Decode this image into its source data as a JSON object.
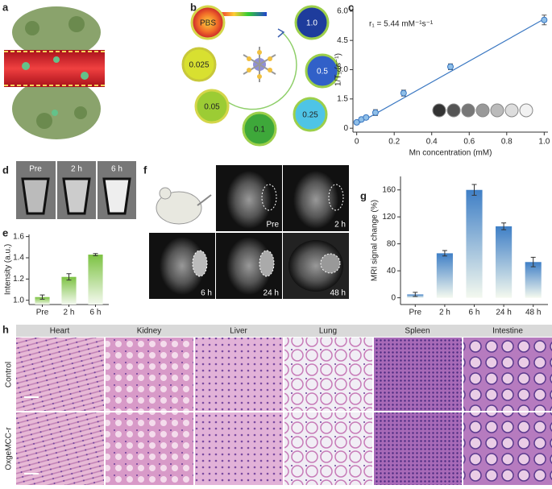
{
  "panel_labels": [
    "a",
    "b",
    "c",
    "d",
    "e",
    "f",
    "g",
    "h"
  ],
  "panel_b": {
    "labels": [
      "PBS",
      "1.0",
      "0.5",
      "0.25",
      "0.1",
      "0.05",
      "0.025"
    ]
  },
  "panel_d": {
    "labels": [
      "Pre",
      "2 h",
      "6 h"
    ]
  },
  "panel_f": {
    "labels": [
      "Pre",
      "2 h",
      "6 h",
      "24 h",
      "48 h"
    ]
  },
  "panel_h": {
    "columns": [
      "Heart",
      "Kidney",
      "Liver",
      "Lung",
      "Spleen",
      "Intestine"
    ],
    "rows": [
      "Control",
      "OxgeMCC-r"
    ]
  },
  "chart_data": [
    {
      "type": "scatter",
      "annotation": "r₁ = 5.44 mM⁻¹s⁻¹",
      "xlabel": "Mn concentration (mM)",
      "ylabel": "1/T₁ (s⁻¹)",
      "x": [
        0,
        0.025,
        0.05,
        0.1,
        0.25,
        0.5,
        1.0
      ],
      "y": [
        0.3,
        0.45,
        0.55,
        0.8,
        1.8,
        3.15,
        5.55
      ],
      "errors": [
        0.1,
        0.1,
        0.1,
        0.15,
        0.15,
        0.15,
        0.25
      ],
      "color": "#8fbfe8",
      "fit": {
        "x": [
          0,
          1.0
        ],
        "y": [
          0.2,
          5.6
        ],
        "color": "#3b78c2"
      },
      "xlim": [
        -0.02,
        1.02
      ],
      "ylim": [
        -0.2,
        6.2
      ],
      "xticks": [
        0,
        0.2,
        0.4,
        0.6,
        0.8,
        {
          "value": 1.0,
          "label": "1.0"
        }
      ],
      "yticks": [
        0,
        1.5,
        {
          "value": 3.0,
          "label": "3.0"
        },
        4.5,
        {
          "value": 6.0,
          "label": "6.0"
        }
      ]
    },
    {
      "type": "bar",
      "ylabel": "Intensity (a.u.)",
      "categories": [
        "Pre",
        "2 h",
        "6 h"
      ],
      "values": [
        1.03,
        1.22,
        1.43
      ],
      "errors": [
        0.02,
        0.03,
        0.01
      ],
      "color": "#7cc242",
      "ylim": [
        0.96,
        1.62
      ],
      "yticks": [
        {
          "value": 1.0,
          "label": "1.0"
        },
        1.2,
        1.4,
        1.6
      ]
    },
    {
      "type": "bar",
      "ylabel": "MRI signal change (%)",
      "categories": [
        "Pre",
        "2 h",
        "6 h",
        "24 h",
        "48 h"
      ],
      "values": [
        5,
        66,
        160,
        106,
        53
      ],
      "errors": [
        3,
        4,
        8,
        5,
        7
      ],
      "color": "#3f7fc6",
      "ylim": [
        -10,
        180
      ],
      "yticks": [
        0,
        40,
        80,
        120,
        160
      ]
    }
  ]
}
